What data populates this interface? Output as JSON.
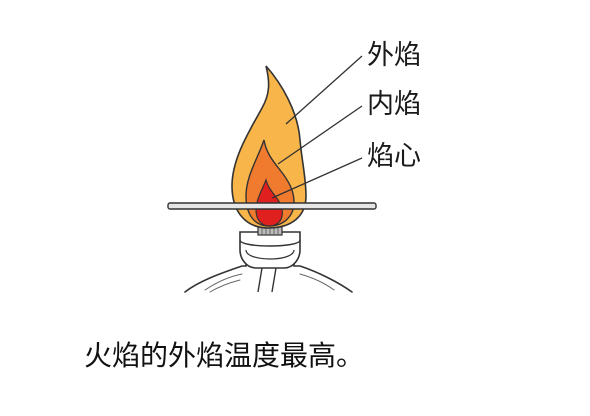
{
  "labels": {
    "outer_flame": "外焰",
    "inner_flame": "内焰",
    "flame_core": "焰心"
  },
  "caption": "火焰的外焰温度最高。",
  "colors": {
    "outer_flame": "#f7b54a",
    "inner_flame": "#f07a2e",
    "flame_core": "#e0201e",
    "stick": "#e6e6e6",
    "outline": "#333333"
  }
}
